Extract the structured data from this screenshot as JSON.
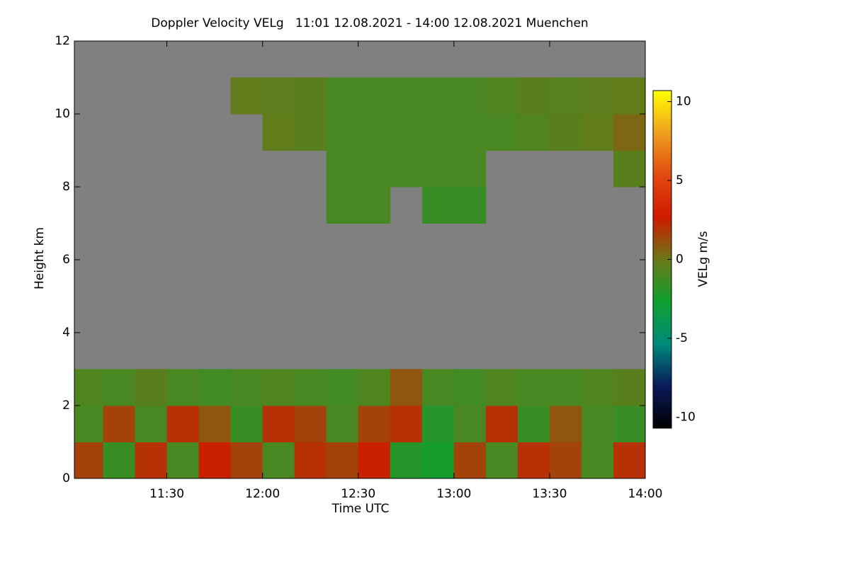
{
  "chart_data": {
    "type": "heatmap",
    "title": "Doppler Velocity VELg   11:01 12.08.2021 - 14:00 12.08.2021 Muenchen",
    "xlabel": "Time UTC",
    "ylabel": "Height km",
    "colorbar_label": "VELg m/s",
    "x_edges": [
      661,
      670,
      680,
      690,
      700,
      710,
      720,
      730,
      740,
      750,
      760,
      770,
      780,
      790,
      800,
      810,
      820,
      830,
      840
    ],
    "y_edges": [
      0,
      1,
      2,
      3,
      4,
      5,
      6,
      7,
      8,
      9,
      10,
      11,
      12
    ],
    "values": [
      [
        1.5,
        -1.5,
        2,
        -1,
        2.5,
        1.5,
        -1,
        2,
        1.5,
        2.5,
        -2,
        -2.5,
        1.5,
        -1,
        2,
        1.5,
        -1,
        2
      ],
      [
        -1,
        1.5,
        -1,
        2,
        1,
        -1.5,
        2,
        1.5,
        -1,
        1.5,
        2,
        -2,
        -1,
        2,
        -1.5,
        1,
        -1,
        -1.5
      ],
      [
        -0.8,
        -1,
        -0.5,
        -1,
        -1.2,
        -1,
        -0.8,
        -1,
        -1.2,
        -0.8,
        1,
        -1,
        -1.2,
        -0.8,
        -1,
        -1,
        -0.8,
        -0.5
      ],
      [
        null,
        null,
        null,
        null,
        null,
        null,
        null,
        null,
        null,
        null,
        null,
        null,
        null,
        null,
        null,
        null,
        null,
        null
      ],
      [
        null,
        null,
        null,
        null,
        null,
        null,
        null,
        null,
        null,
        null,
        null,
        null,
        null,
        null,
        null,
        null,
        null,
        null
      ],
      [
        null,
        null,
        null,
        null,
        null,
        null,
        null,
        null,
        null,
        null,
        null,
        null,
        null,
        null,
        null,
        null,
        null,
        null
      ],
      [
        null,
        null,
        null,
        null,
        null,
        null,
        null,
        null,
        null,
        null,
        null,
        null,
        null,
        null,
        null,
        null,
        null,
        null
      ],
      [
        null,
        null,
        null,
        null,
        null,
        null,
        null,
        null,
        -1,
        -1,
        null,
        -1.5,
        -1.5,
        null,
        null,
        null,
        null,
        null
      ],
      [
        null,
        null,
        null,
        null,
        null,
        null,
        null,
        null,
        -1,
        -1,
        -1,
        -1,
        -1,
        null,
        null,
        null,
        null,
        -0.5
      ],
      [
        null,
        null,
        null,
        null,
        null,
        null,
        -0.3,
        -0.5,
        -1,
        -1,
        -1,
        -1,
        -1,
        -1,
        -0.8,
        -0.5,
        -0.3,
        0.5
      ],
      [
        null,
        null,
        null,
        null,
        null,
        -0.3,
        -0.4,
        -0.5,
        -1,
        -1,
        -1,
        -1,
        -1,
        -0.8,
        -0.5,
        -0.6,
        -0.4,
        -0.3
      ],
      [
        null,
        null,
        null,
        null,
        null,
        null,
        null,
        null,
        null,
        null,
        null,
        null,
        null,
        null,
        null,
        null,
        null,
        null
      ]
    ],
    "xlim": [
      661,
      840
    ],
    "xticks": [
      {
        "value": 690,
        "label": "11:30"
      },
      {
        "value": 720,
        "label": "12:00"
      },
      {
        "value": 750,
        "label": "12:30"
      },
      {
        "value": 780,
        "label": "13:00"
      },
      {
        "value": 810,
        "label": "13:30"
      },
      {
        "value": 840,
        "label": "14:00"
      }
    ],
    "ylim": [
      0,
      12
    ],
    "yticks": [
      0,
      2,
      4,
      6,
      8,
      10,
      12
    ],
    "clim": [
      -10.7,
      10.7
    ],
    "cticks": [
      -10,
      -5,
      0,
      5,
      10
    ],
    "colormap": [
      "#000000",
      "#0a1a5a",
      "#008a7a",
      "#10a030",
      "#6a7818",
      "#d01a00",
      "#e04a10",
      "#f0a020",
      "#ffff00"
    ],
    "missing_color": "#808080"
  }
}
